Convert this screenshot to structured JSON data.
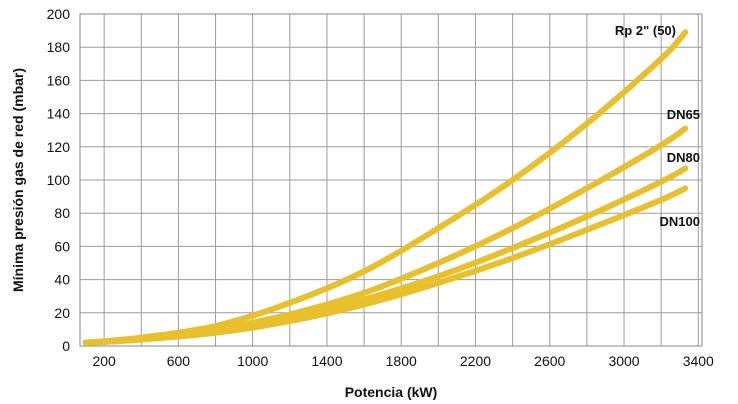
{
  "chart_data": {
    "type": "line",
    "title": "",
    "xlabel": "Potencia (kW)",
    "ylabel": "Mínima presión gas de red (mbar)",
    "x_ticks": [
      200,
      600,
      1000,
      1400,
      1800,
      2200,
      2600,
      3000,
      3400
    ],
    "y_ticks": [
      0,
      20,
      40,
      60,
      80,
      100,
      120,
      140,
      160,
      180,
      200
    ],
    "xlim": [
      70,
      3420
    ],
    "ylim": [
      0,
      200
    ],
    "grid": true,
    "legend": "none",
    "line_color": "#E8C02C",
    "series": [
      {
        "name": "Rp 2\" (50)",
        "x": [
          100,
          400,
          800,
          1200,
          1600,
          2000,
          2400,
          2800,
          3200,
          3330
        ],
        "values": [
          2,
          5,
          12,
          26,
          45,
          71,
          100,
          134,
          173,
          189
        ]
      },
      {
        "name": "DN65",
        "x": [
          100,
          400,
          800,
          1200,
          1600,
          2000,
          2400,
          2800,
          3200,
          3330
        ],
        "values": [
          2,
          4,
          10,
          19,
          32,
          50,
          71,
          95,
          121,
          131
        ]
      },
      {
        "name": "DN80",
        "x": [
          100,
          400,
          800,
          1200,
          1600,
          2000,
          2400,
          2800,
          3200,
          3330
        ],
        "values": [
          2,
          4,
          9,
          17,
          28,
          42,
          59,
          78,
          99,
          107
        ]
      },
      {
        "name": "DN100",
        "x": [
          100,
          400,
          800,
          1200,
          1600,
          2000,
          2400,
          2800,
          3200,
          3330
        ],
        "values": [
          2,
          4,
          8,
          15,
          25,
          38,
          53,
          70,
          88,
          95
        ]
      }
    ]
  }
}
